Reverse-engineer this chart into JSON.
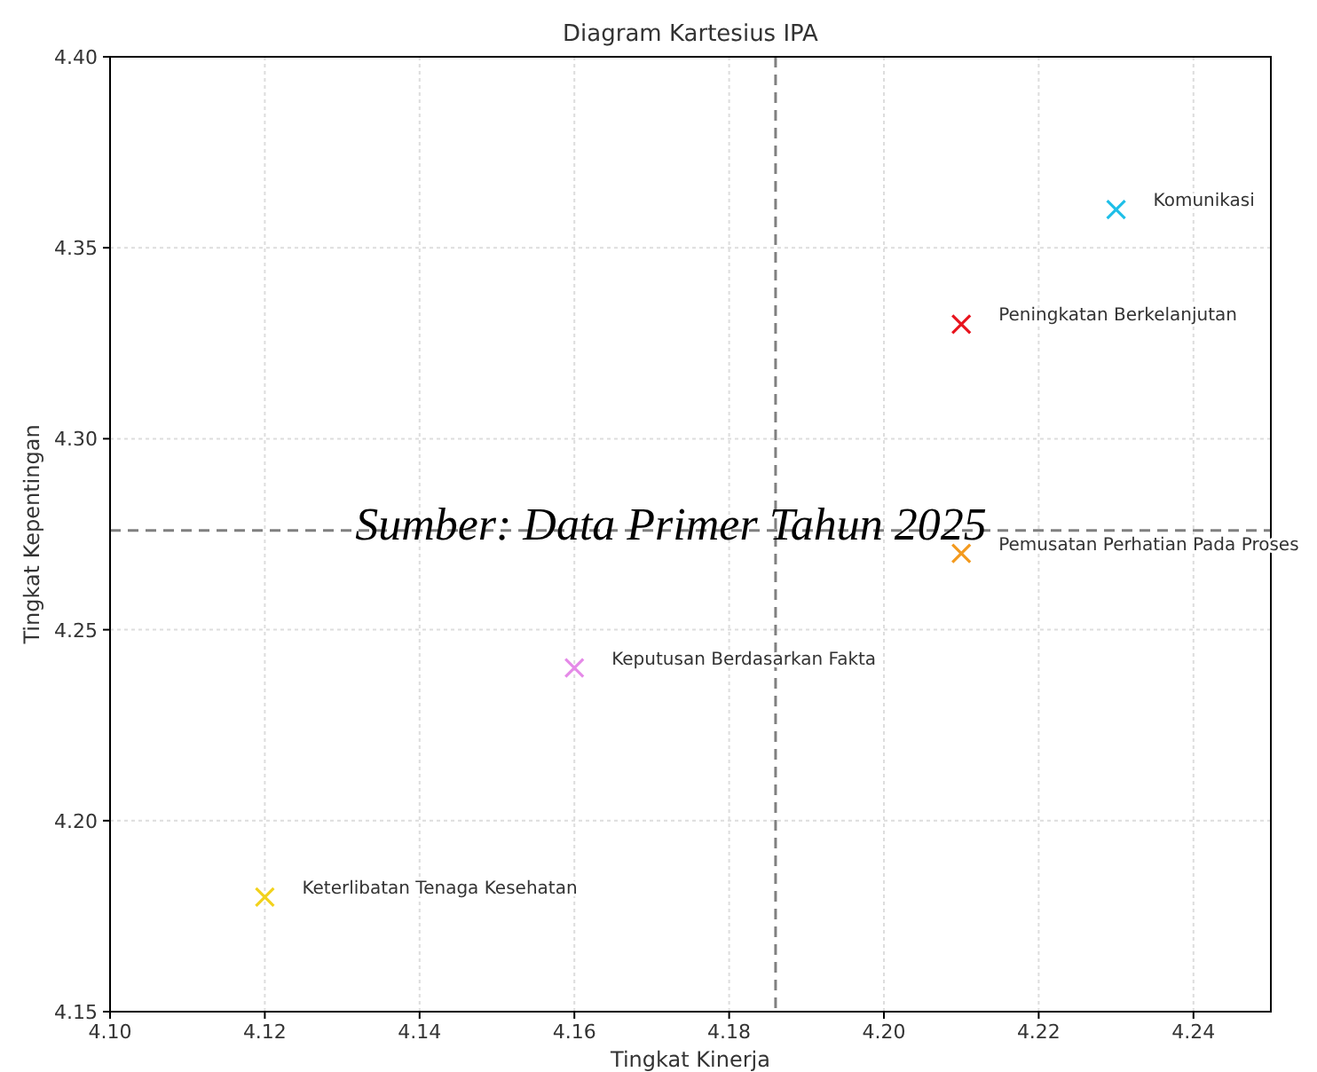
{
  "chart_data": {
    "type": "scatter",
    "title": "Diagram Kartesius IPA",
    "xlabel": "Tingkat Kinerja",
    "ylabel": "Tingkat Kepentingan",
    "series": [
      {
        "name": "Komunikasi",
        "color": "#1fbfe8",
        "x": [
          4.23
        ],
        "values": [
          4.36
        ]
      },
      {
        "name": "Peningkatan Berkelanjutan",
        "color": "#e8141e",
        "x": [
          4.21
        ],
        "values": [
          4.33
        ]
      },
      {
        "name": "Pemusatan Perhatian Pada Proses",
        "color": "#f39a1e",
        "x": [
          4.21
        ],
        "values": [
          4.27
        ]
      },
      {
        "name": "Keputusan Berdasarkan Fakta",
        "color": "#e58ae8",
        "x": [
          4.16
        ],
        "values": [
          4.24
        ]
      },
      {
        "name": "Keterlibatan Tenaga Kesehatan",
        "color": "#f2d21c",
        "x": [
          4.12
        ],
        "values": [
          4.18
        ]
      }
    ],
    "xlim": [
      4.1,
      4.25
    ],
    "xticks": [
      {
        "value": 4.1,
        "label": "4.10"
      },
      4.12,
      4.14,
      4.16,
      4.18,
      {
        "value": 4.2,
        "label": "4.20"
      },
      4.22,
      4.24
    ],
    "ylim": [
      4.15,
      4.4
    ],
    "yticks": [
      4.15,
      {
        "value": 4.2,
        "label": "4.20"
      },
      4.25,
      {
        "value": 4.3,
        "label": "4.30"
      },
      4.35,
      {
        "value": 4.4,
        "label": "4.40"
      }
    ],
    "ref_lines": [
      {
        "axis": "x",
        "value": 4.186,
        "color": "#808080",
        "line_style": "dashed"
      },
      {
        "axis": "y",
        "value": 4.276,
        "color": "#808080",
        "line_style": "dashed"
      }
    ],
    "annotations": [
      "Sumber: Data Primer Tahun 2025"
    ],
    "grid": true,
    "marker": "cross"
  }
}
